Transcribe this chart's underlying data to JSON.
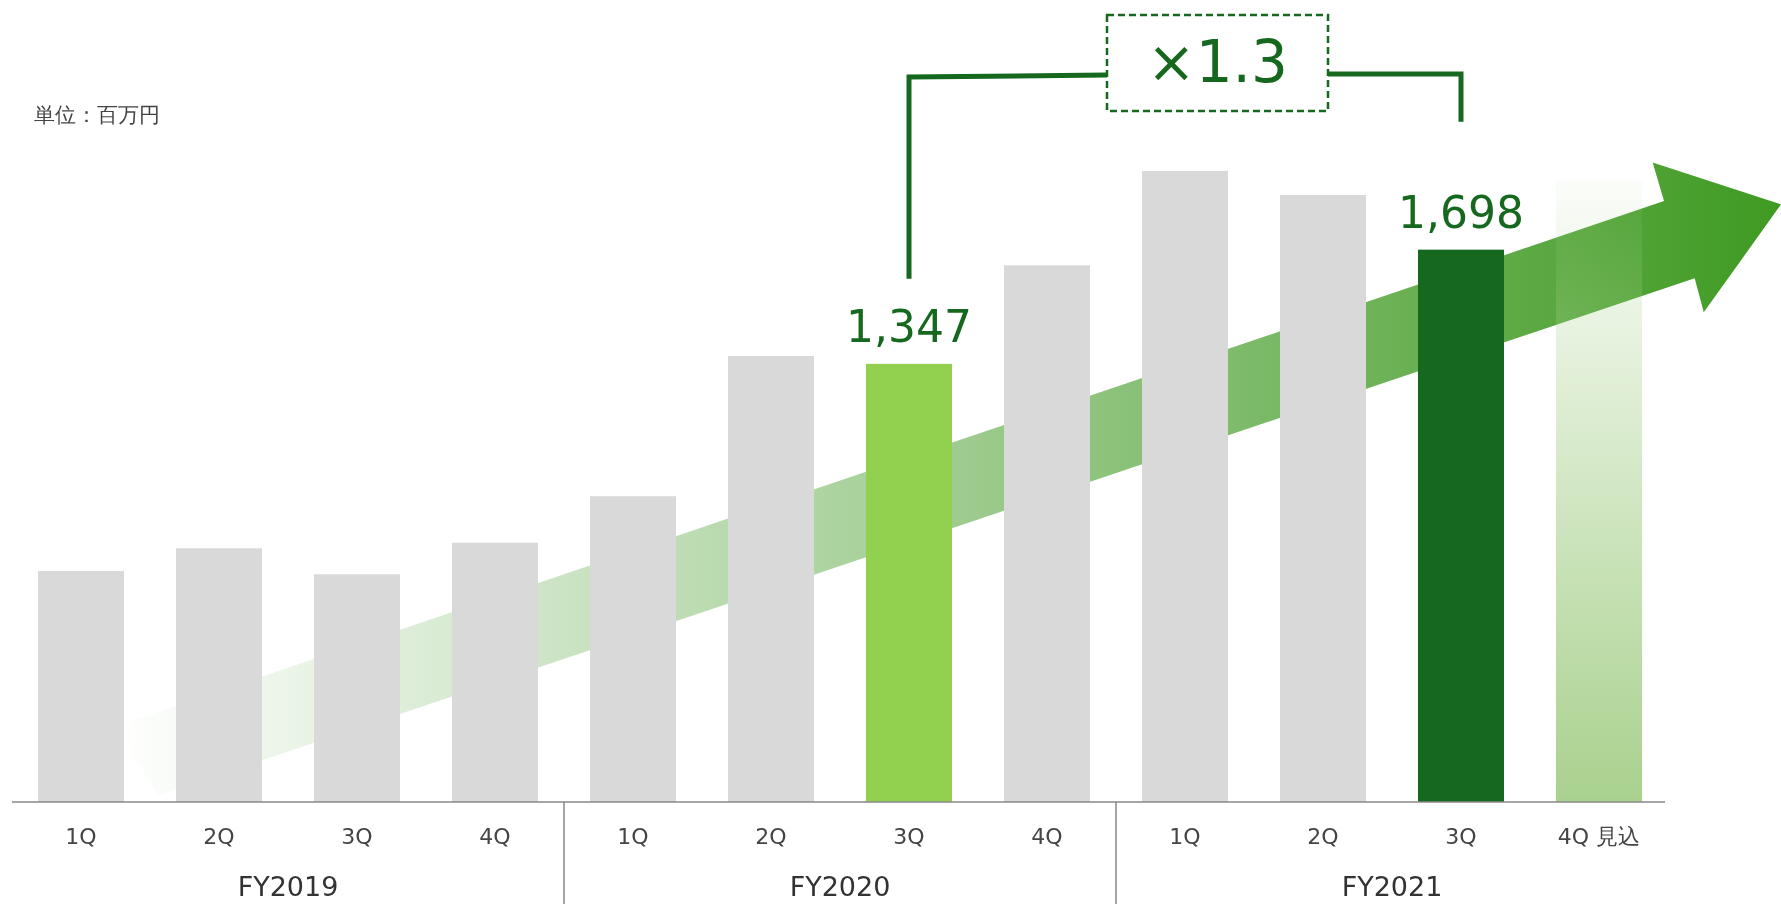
{
  "chart_data": {
    "type": "bar",
    "categories": [
      "1Q",
      "2Q",
      "3Q",
      "4Q",
      "1Q",
      "2Q",
      "3Q",
      "4Q",
      "1Q",
      "2Q",
      "3Q",
      "4Q 見込"
    ],
    "values": [
      710,
      780,
      700,
      797,
      940,
      1371,
      1347,
      1650,
      1940,
      1866,
      1698,
      1911
    ],
    "colors": [
      "#d9d9d9",
      "#d9d9d9",
      "#d9d9d9",
      "#d9d9d9",
      "#d9d9d9",
      "#d9d9d9",
      "#92d050",
      "#d9d9d9",
      "#d9d9d9",
      "#d9d9d9",
      "#16681e",
      "#a9d18e"
    ],
    "value_labels": [
      null,
      null,
      null,
      null,
      null,
      null,
      "1,347",
      null,
      null,
      null,
      "1,698",
      null
    ],
    "annotations": [
      "単位：百万円",
      "FY2019",
      "FY2020",
      "FY2021",
      "×1.3"
    ]
  }
}
